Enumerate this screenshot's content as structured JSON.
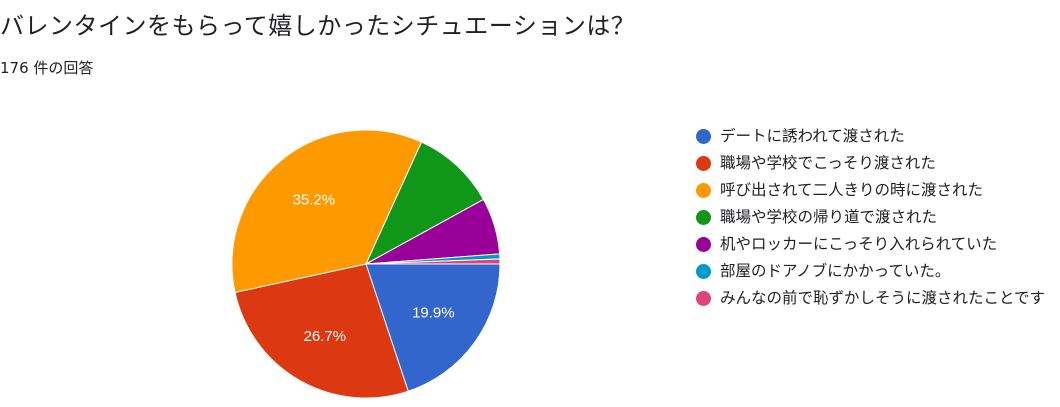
{
  "question": {
    "title": "バレンタインをもらって嬉しかったシチュエーションは？",
    "response_count": "176 件の回答"
  },
  "chart_data": {
    "type": "pie",
    "title": "",
    "slices": [
      {
        "label": "デートに誘われて渡された",
        "value": 19.9,
        "color": "#3366cc",
        "data_label": "19.9%"
      },
      {
        "label": "職場や学校でこっそり渡された",
        "value": 26.7,
        "color": "#dc3912",
        "data_label": "26.7%"
      },
      {
        "label": "呼び出されて二人きりの時に渡された",
        "value": 35.2,
        "color": "#ff9900",
        "data_label": "35.2%"
      },
      {
        "label": "職場や学校の帰り道で渡された",
        "value": 10.2,
        "color": "#109618",
        "data_label": ""
      },
      {
        "label": "机やロッカーにこっそり入れられていた",
        "value": 6.8,
        "color": "#990099",
        "data_label": ""
      },
      {
        "label": "部屋のドアノブにかかっていた。",
        "value": 0.6,
        "color": "#0099c6",
        "data_label": ""
      },
      {
        "label": "みんなの前で恥ずかしそうに渡されたことです",
        "value": 0.6,
        "color": "#dd4477",
        "data_label": ""
      }
    ],
    "legend_position": "right"
  }
}
